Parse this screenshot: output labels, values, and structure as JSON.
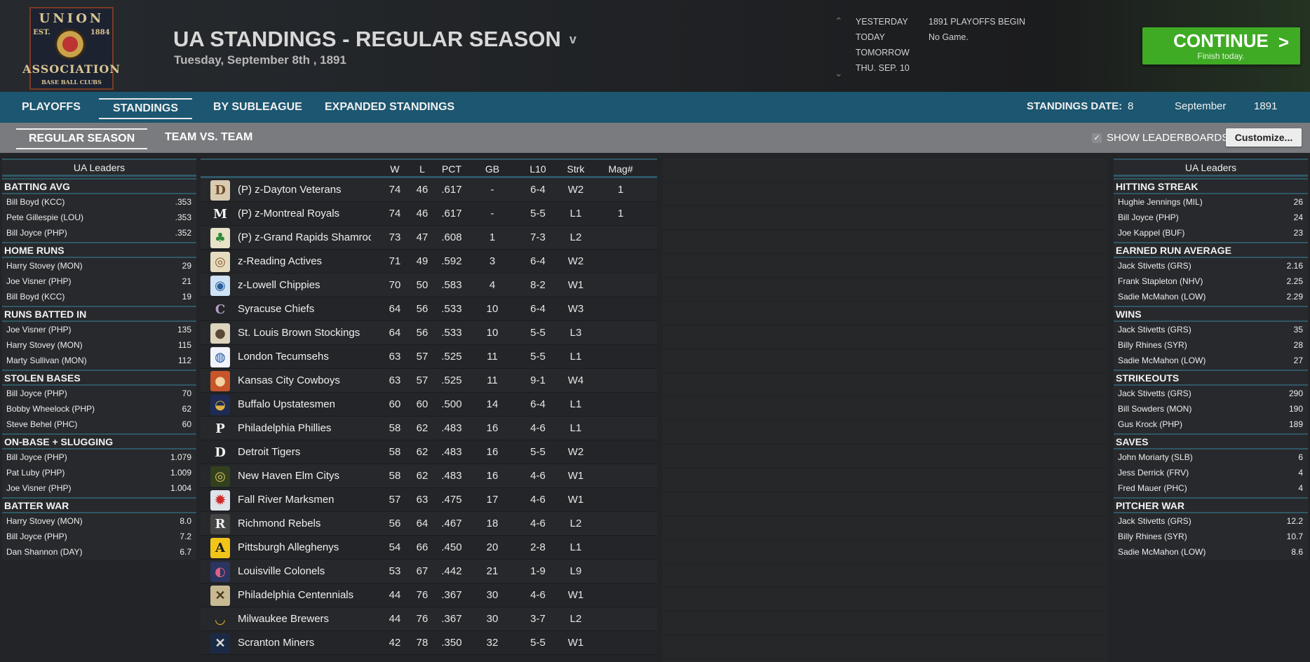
{
  "header": {
    "logo": {
      "line1": "UNION",
      "est": "EST.",
      "year": "1884",
      "line2": "ASSOCIATION",
      "line3": "BASE BALL CLUBS"
    },
    "title": "UA STANDINGS - REGULAR SEASON",
    "title_chevron": "v",
    "subtitle": "Tuesday, September 8th , 1891",
    "date_nav": [
      {
        "label": "YESTERDAY",
        "value": "1891 PLAYOFFS BEGIN"
      },
      {
        "label": "TODAY",
        "value": "No Game."
      },
      {
        "label": "TOMORROW",
        "value": ""
      },
      {
        "label": "THU. SEP. 10",
        "value": ""
      }
    ],
    "continue": {
      "label": "CONTINUE",
      "sublabel": "Finish today.",
      "arrow": ">",
      "color": "#3fab25"
    }
  },
  "tabs": {
    "items": [
      "PLAYOFFS",
      "STANDINGS",
      "BY SUBLEAGUE",
      "EXPANDED STANDINGS"
    ],
    "active": "STANDINGS",
    "standings_date_label": "STANDINGS DATE:",
    "standings_date": {
      "day": "8",
      "month": "September",
      "year": "1891"
    }
  },
  "subtabs": {
    "items": [
      "REGULAR SEASON",
      "TEAM VS. TEAM"
    ],
    "active": "REGULAR SEASON",
    "show_leaderboards_label": "SHOW LEADERBOARDS",
    "show_leaderboards_checked": true,
    "customize_label": "Customize..."
  },
  "left_leaders": {
    "title": "UA Leaders",
    "sections": [
      {
        "name": "BATTING AVG",
        "rows": [
          [
            "Bill Boyd (KCC)",
            ".353"
          ],
          [
            "Pete Gillespie (LOU)",
            ".353"
          ],
          [
            "Bill Joyce (PHP)",
            ".352"
          ]
        ]
      },
      {
        "name": "HOME RUNS",
        "rows": [
          [
            "Harry Stovey (MON)",
            "29"
          ],
          [
            "Joe Visner (PHP)",
            "21"
          ],
          [
            "Bill Boyd (KCC)",
            "19"
          ]
        ]
      },
      {
        "name": "RUNS BATTED IN",
        "rows": [
          [
            "Joe Visner (PHP)",
            "135"
          ],
          [
            "Harry Stovey (MON)",
            "115"
          ],
          [
            "Marty Sullivan (MON)",
            "112"
          ]
        ]
      },
      {
        "name": "STOLEN BASES",
        "rows": [
          [
            "Bill Joyce (PHP)",
            "70"
          ],
          [
            "Bobby Wheelock (PHP)",
            "62"
          ],
          [
            "Steve Behel (PHC)",
            "60"
          ]
        ]
      },
      {
        "name": "ON-BASE + SLUGGING",
        "rows": [
          [
            "Bill Joyce (PHP)",
            "1.079"
          ],
          [
            "Pat Luby (PHP)",
            "1.009"
          ],
          [
            "Joe Visner (PHP)",
            "1.004"
          ]
        ]
      },
      {
        "name": "BATTER WAR",
        "rows": [
          [
            "Harry Stovey (MON)",
            "8.0"
          ],
          [
            "Bill Joyce (PHP)",
            "7.2"
          ],
          [
            "Dan Shannon (DAY)",
            "6.7"
          ]
        ]
      }
    ]
  },
  "right_leaders": {
    "title": "UA Leaders",
    "sections": [
      {
        "name": "HITTING STREAK",
        "rows": [
          [
            "Hughie Jennings (MIL)",
            "26"
          ],
          [
            "Bill Joyce (PHP)",
            "24"
          ],
          [
            "Joe Kappel (BUF)",
            "23"
          ]
        ]
      },
      {
        "name": "EARNED RUN AVERAGE",
        "rows": [
          [
            "Jack Stivetts (GRS)",
            "2.16"
          ],
          [
            "Frank Stapleton (NHV)",
            "2.25"
          ],
          [
            "Sadie McMahon (LOW)",
            "2.29"
          ]
        ]
      },
      {
        "name": "WINS",
        "rows": [
          [
            "Jack Stivetts (GRS)",
            "35"
          ],
          [
            "Billy Rhines (SYR)",
            "28"
          ],
          [
            "Sadie McMahon (LOW)",
            "27"
          ]
        ]
      },
      {
        "name": "STRIKEOUTS",
        "rows": [
          [
            "Jack Stivetts (GRS)",
            "290"
          ],
          [
            "Bill Sowders (MON)",
            "190"
          ],
          [
            "Gus Krock (PHP)",
            "189"
          ]
        ]
      },
      {
        "name": "SAVES",
        "rows": [
          [
            "John Moriarty (SLB)",
            "6"
          ],
          [
            "Jess Derrick (FRV)",
            "4"
          ],
          [
            "Fred Mauer (PHC)",
            "4"
          ]
        ]
      },
      {
        "name": "PITCHER WAR",
        "rows": [
          [
            "Jack Stivetts (GRS)",
            "12.2"
          ],
          [
            "Billy Rhines (SYR)",
            "10.7"
          ],
          [
            "Sadie McMahon (LOW)",
            "8.6"
          ]
        ]
      }
    ]
  },
  "standings": {
    "columns": [
      "W",
      "L",
      "PCT",
      "GB",
      "L10",
      "Strk",
      "Mag#"
    ],
    "rows": [
      {
        "team": "(P) z-Dayton Veterans",
        "w": "74",
        "l": "46",
        "pct": ".617",
        "gb": "-",
        "l10": "6-4",
        "strk": "W2",
        "mag": "1",
        "logo_bg": "#d9cbb0",
        "logo_fg": "#6b4a2a",
        "glyph": "D"
      },
      {
        "team": "(P) z-Montreal Royals",
        "w": "74",
        "l": "46",
        "pct": ".617",
        "gb": "-",
        "l10": "5-5",
        "strk": "L1",
        "mag": "1",
        "logo_bg": "transparent",
        "logo_fg": "#f4f4f4",
        "glyph": "M"
      },
      {
        "team": "(P) z-Grand Rapids Shamrocks",
        "w": "73",
        "l": "47",
        "pct": ".608",
        "gb": "1",
        "l10": "7-3",
        "strk": "L2",
        "mag": "",
        "logo_bg": "#e7e2c8",
        "logo_fg": "#2f8a3a",
        "glyph": "♣"
      },
      {
        "team": "z-Reading Actives",
        "w": "71",
        "l": "49",
        "pct": ".592",
        "gb": "3",
        "l10": "6-4",
        "strk": "W2",
        "mag": "",
        "logo_bg": "#e5dcc0",
        "logo_fg": "#8a5a2a",
        "glyph": "◎"
      },
      {
        "team": "z-Lowell Chippies",
        "w": "70",
        "l": "50",
        "pct": ".583",
        "gb": "4",
        "l10": "8-2",
        "strk": "W1",
        "mag": "",
        "logo_bg": "#cfe3f5",
        "logo_fg": "#2a5d9a",
        "glyph": "◉"
      },
      {
        "team": "Syracuse Chiefs",
        "w": "64",
        "l": "56",
        "pct": ".533",
        "gb": "10",
        "l10": "6-4",
        "strk": "W3",
        "mag": "",
        "logo_bg": "transparent",
        "logo_fg": "#b7a0c8",
        "glyph": "C"
      },
      {
        "team": "St. Louis Brown Stockings",
        "w": "64",
        "l": "56",
        "pct": ".533",
        "gb": "10",
        "l10": "5-5",
        "strk": "L3",
        "mag": "",
        "logo_bg": "#ddd4bd",
        "logo_fg": "#5a4a35",
        "glyph": "●"
      },
      {
        "team": "London Tecumsehs",
        "w": "63",
        "l": "57",
        "pct": ".525",
        "gb": "11",
        "l10": "5-5",
        "strk": "L1",
        "mag": "",
        "logo_bg": "#f0f4fa",
        "logo_fg": "#1f56a8",
        "glyph": "◍"
      },
      {
        "team": "Kansas City Cowboys",
        "w": "63",
        "l": "57",
        "pct": ".525",
        "gb": "11",
        "l10": "9-1",
        "strk": "W4",
        "mag": "",
        "logo_bg": "#c8552a",
        "logo_fg": "#f1d2a0",
        "glyph": "●"
      },
      {
        "team": "Buffalo Upstatesmen",
        "w": "60",
        "l": "60",
        "pct": ".500",
        "gb": "14",
        "l10": "6-4",
        "strk": "L1",
        "mag": "",
        "logo_bg": "#1e2b55",
        "logo_fg": "#e0b040",
        "glyph": "◒"
      },
      {
        "team": "Philadelphia Phillies",
        "w": "58",
        "l": "62",
        "pct": ".483",
        "gb": "16",
        "l10": "4-6",
        "strk": "L1",
        "mag": "",
        "logo_bg": "transparent",
        "logo_fg": "#f4f4f4",
        "glyph": "P"
      },
      {
        "team": "Detroit Tigers",
        "w": "58",
        "l": "62",
        "pct": ".483",
        "gb": "16",
        "l10": "5-5",
        "strk": "W2",
        "mag": "",
        "logo_bg": "transparent",
        "logo_fg": "#f4f4f4",
        "glyph": "D"
      },
      {
        "team": "New Haven Elm Citys",
        "w": "58",
        "l": "62",
        "pct": ".483",
        "gb": "16",
        "l10": "4-6",
        "strk": "W1",
        "mag": "",
        "logo_bg": "#33401e",
        "logo_fg": "#d8c060",
        "glyph": "◎"
      },
      {
        "team": "Fall River Marksmen",
        "w": "57",
        "l": "63",
        "pct": ".475",
        "gb": "17",
        "l10": "4-6",
        "strk": "W1",
        "mag": "",
        "logo_bg": "#dfe3ea",
        "logo_fg": "#d02a2a",
        "glyph": "✹"
      },
      {
        "team": "Richmond Rebels",
        "w": "56",
        "l": "64",
        "pct": ".467",
        "gb": "18",
        "l10": "4-6",
        "strk": "L2",
        "mag": "",
        "logo_bg": "#444",
        "logo_fg": "#eee",
        "glyph": "R"
      },
      {
        "team": "Pittsburgh Alleghenys",
        "w": "54",
        "l": "66",
        "pct": ".450",
        "gb": "20",
        "l10": "2-8",
        "strk": "L1",
        "mag": "",
        "logo_bg": "#f0c419",
        "logo_fg": "#1a1a1a",
        "glyph": "A"
      },
      {
        "team": "Louisville Colonels",
        "w": "53",
        "l": "67",
        "pct": ".442",
        "gb": "21",
        "l10": "1-9",
        "strk": "L9",
        "mag": "",
        "logo_bg": "#2a3560",
        "logo_fg": "#e06080",
        "glyph": "◐"
      },
      {
        "team": "Philadelphia Centennials",
        "w": "44",
        "l": "76",
        "pct": ".367",
        "gb": "30",
        "l10": "4-6",
        "strk": "W1",
        "mag": "",
        "logo_bg": "#c8b992",
        "logo_fg": "#4a3a20",
        "glyph": "✕"
      },
      {
        "team": "Milwaukee Brewers",
        "w": "44",
        "l": "76",
        "pct": ".367",
        "gb": "30",
        "l10": "3-7",
        "strk": "L2",
        "mag": "",
        "logo_bg": "transparent",
        "logo_fg": "#e5b52a",
        "glyph": "◡"
      },
      {
        "team": "Scranton Miners",
        "w": "42",
        "l": "78",
        "pct": ".350",
        "gb": "32",
        "l10": "5-5",
        "strk": "W1",
        "mag": "",
        "logo_bg": "#1b2a44",
        "logo_fg": "#ddd",
        "glyph": "✕"
      }
    ]
  }
}
